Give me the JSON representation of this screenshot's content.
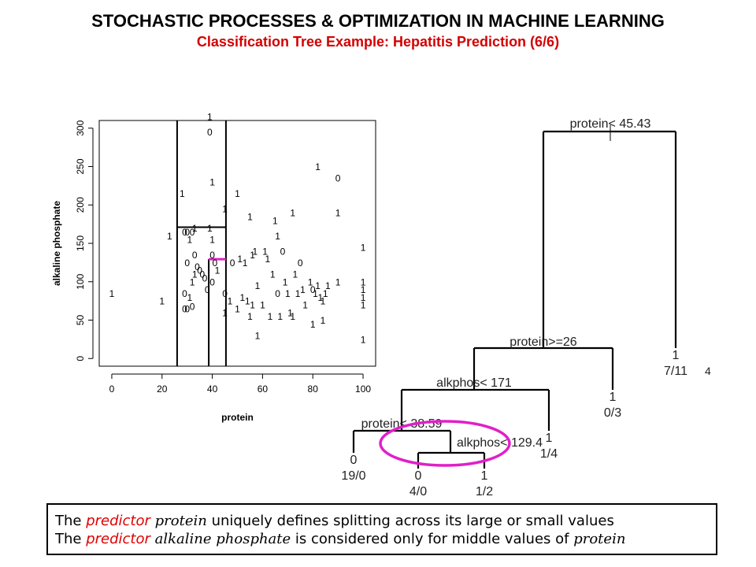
{
  "header": {
    "title": "STOCHASTIC PROCESSES & OPTIMIZATION IN MACHINE LEARNING",
    "subtitle": "Classification Tree Example: Hepatitis Prediction (6/6)"
  },
  "chart_data": [
    {
      "type": "scatter",
      "xlabel": "protein",
      "ylabel": "alkaline phosphate",
      "xlim": [
        -5,
        105
      ],
      "ylim": [
        -10,
        310
      ],
      "xticks": [
        "0",
        "20",
        "40",
        "60",
        "80",
        "100"
      ],
      "yticks": [
        "0",
        "50",
        "100",
        "150",
        "200",
        "250",
        "300"
      ],
      "grid": false,
      "splits": [
        {
          "var": "protein",
          "value": 26
        },
        {
          "var": "protein",
          "value": 45.43
        },
        {
          "var": "protein",
          "value": 38.59
        },
        {
          "var": "alkphos",
          "value": 171,
          "x_range": [
            26,
            45.43
          ]
        },
        {
          "var": "alkphos",
          "value": 129.4,
          "x_range": [
            38.59,
            45.43
          ],
          "highlight": true
        }
      ],
      "points": [
        {
          "x": 0,
          "y": 85,
          "label": "1"
        },
        {
          "x": 20,
          "y": 75,
          "label": "1"
        },
        {
          "x": 23,
          "y": 160,
          "label": "1"
        },
        {
          "x": 28,
          "y": 215,
          "label": "1"
        },
        {
          "x": 29,
          "y": 165,
          "label": "0"
        },
        {
          "x": 30,
          "y": 165,
          "label": "0"
        },
        {
          "x": 32,
          "y": 165,
          "label": "0"
        },
        {
          "x": 33,
          "y": 170,
          "label": "1"
        },
        {
          "x": 31,
          "y": 155,
          "label": "1"
        },
        {
          "x": 30,
          "y": 125,
          "label": "0"
        },
        {
          "x": 33,
          "y": 135,
          "label": "0"
        },
        {
          "x": 34,
          "y": 120,
          "label": "0"
        },
        {
          "x": 35,
          "y": 115,
          "label": "0"
        },
        {
          "x": 36,
          "y": 110,
          "label": "0"
        },
        {
          "x": 37,
          "y": 105,
          "label": "0"
        },
        {
          "x": 32,
          "y": 100,
          "label": "1"
        },
        {
          "x": 33,
          "y": 110,
          "label": "1"
        },
        {
          "x": 29,
          "y": 85,
          "label": "0"
        },
        {
          "x": 31,
          "y": 80,
          "label": "1"
        },
        {
          "x": 29,
          "y": 65,
          "label": "0"
        },
        {
          "x": 30,
          "y": 65,
          "label": "0"
        },
        {
          "x": 32,
          "y": 68,
          "label": "0"
        },
        {
          "x": 38,
          "y": 90,
          "label": "0"
        },
        {
          "x": 39,
          "y": 315,
          "label": "1"
        },
        {
          "x": 39,
          "y": 295,
          "label": "0"
        },
        {
          "x": 40,
          "y": 230,
          "label": "1"
        },
        {
          "x": 39,
          "y": 170,
          "label": "1"
        },
        {
          "x": 40,
          "y": 155,
          "label": "1"
        },
        {
          "x": 40,
          "y": 135,
          "label": "0"
        },
        {
          "x": 41,
          "y": 125,
          "label": "0"
        },
        {
          "x": 40,
          "y": 100,
          "label": "0"
        },
        {
          "x": 42,
          "y": 115,
          "label": "1"
        },
        {
          "x": 45,
          "y": 195,
          "label": "1"
        },
        {
          "x": 45,
          "y": 85,
          "label": "0"
        },
        {
          "x": 45,
          "y": 60,
          "label": "1"
        },
        {
          "x": 48,
          "y": 125,
          "label": "0"
        },
        {
          "x": 50,
          "y": 215,
          "label": "1"
        },
        {
          "x": 47,
          "y": 75,
          "label": "1"
        },
        {
          "x": 50,
          "y": 65,
          "label": "1"
        },
        {
          "x": 52,
          "y": 80,
          "label": "1"
        },
        {
          "x": 54,
          "y": 75,
          "label": "1"
        },
        {
          "x": 51,
          "y": 130,
          "label": "1"
        },
        {
          "x": 53,
          "y": 125,
          "label": "1"
        },
        {
          "x": 55,
          "y": 185,
          "label": "1"
        },
        {
          "x": 56,
          "y": 135,
          "label": "1"
        },
        {
          "x": 57,
          "y": 140,
          "label": "1"
        },
        {
          "x": 58,
          "y": 95,
          "label": "1"
        },
        {
          "x": 56,
          "y": 70,
          "label": "1"
        },
        {
          "x": 55,
          "y": 55,
          "label": "1"
        },
        {
          "x": 58,
          "y": 30,
          "label": "1"
        },
        {
          "x": 60,
          "y": 70,
          "label": "1"
        },
        {
          "x": 61,
          "y": 140,
          "label": "1"
        },
        {
          "x": 62,
          "y": 130,
          "label": "1"
        },
        {
          "x": 63,
          "y": 55,
          "label": "1"
        },
        {
          "x": 65,
          "y": 180,
          "label": "1"
        },
        {
          "x": 66,
          "y": 160,
          "label": "1"
        },
        {
          "x": 64,
          "y": 110,
          "label": "1"
        },
        {
          "x": 66,
          "y": 85,
          "label": "0"
        },
        {
          "x": 67,
          "y": 55,
          "label": "1"
        },
        {
          "x": 68,
          "y": 140,
          "label": "0"
        },
        {
          "x": 69,
          "y": 100,
          "label": "1"
        },
        {
          "x": 70,
          "y": 85,
          "label": "1"
        },
        {
          "x": 71,
          "y": 60,
          "label": "1"
        },
        {
          "x": 72,
          "y": 190,
          "label": "1"
        },
        {
          "x": 73,
          "y": 110,
          "label": "1"
        },
        {
          "x": 74,
          "y": 85,
          "label": "1"
        },
        {
          "x": 72,
          "y": 55,
          "label": "1"
        },
        {
          "x": 75,
          "y": 125,
          "label": "0"
        },
        {
          "x": 76,
          "y": 90,
          "label": "1"
        },
        {
          "x": 77,
          "y": 70,
          "label": "1"
        },
        {
          "x": 79,
          "y": 100,
          "label": "1"
        },
        {
          "x": 80,
          "y": 90,
          "label": "0"
        },
        {
          "x": 81,
          "y": 85,
          "label": "1"
        },
        {
          "x": 82,
          "y": 95,
          "label": "1"
        },
        {
          "x": 83,
          "y": 80,
          "label": "1"
        },
        {
          "x": 84,
          "y": 75,
          "label": "1"
        },
        {
          "x": 85,
          "y": 85,
          "label": "1"
        },
        {
          "x": 86,
          "y": 95,
          "label": "1"
        },
        {
          "x": 84,
          "y": 50,
          "label": "1"
        },
        {
          "x": 80,
          "y": 45,
          "label": "1"
        },
        {
          "x": 82,
          "y": 250,
          "label": "1"
        },
        {
          "x": 90,
          "y": 235,
          "label": "0"
        },
        {
          "x": 90,
          "y": 190,
          "label": "1"
        },
        {
          "x": 90,
          "y": 100,
          "label": "1"
        },
        {
          "x": 100,
          "y": 145,
          "label": "1"
        },
        {
          "x": 100,
          "y": 100,
          "label": "1"
        },
        {
          "x": 100,
          "y": 90,
          "label": "1"
        },
        {
          "x": 100,
          "y": 80,
          "label": "1"
        },
        {
          "x": 100,
          "y": 70,
          "label": "1"
        },
        {
          "x": 100,
          "y": 25,
          "label": "1"
        }
      ]
    },
    {
      "type": "tree",
      "splits": [
        {
          "id": "root",
          "label": "protein< 45.43"
        },
        {
          "id": "n2",
          "label": "protein>=26"
        },
        {
          "id": "n3",
          "label": "alkphos< 171"
        },
        {
          "id": "n4",
          "label": "protein< 38.59"
        },
        {
          "id": "n5",
          "label": "alkphos< 129.4",
          "highlight": true
        }
      ],
      "leaves": [
        {
          "id": "l1",
          "class": "0",
          "counts": "19/0"
        },
        {
          "id": "l2",
          "class": "0",
          "counts": "4/0"
        },
        {
          "id": "l3",
          "class": "1",
          "counts": "1/2"
        },
        {
          "id": "l4",
          "class": "1",
          "counts": "1/4"
        },
        {
          "id": "l5",
          "class": "1",
          "counts": "0/3"
        },
        {
          "id": "l6",
          "class": "1",
          "counts": "7/11",
          "note": "4"
        }
      ]
    }
  ],
  "caption": {
    "line1": {
      "pre": "The ",
      "red": "predictor",
      "mid": " ",
      "math": "protein",
      "post": " uniquely defines splitting across its large or small values"
    },
    "line2": {
      "pre": "The ",
      "red": "predictor",
      "mid": " ",
      "math": "alkaline phosphate",
      "post": " is considered only for middle values of ",
      "math2": "protein"
    }
  },
  "colors": {
    "title": "#000000",
    "subtitle": "#d40000",
    "highlight": "#e020c8",
    "predictor": "#e00000"
  }
}
